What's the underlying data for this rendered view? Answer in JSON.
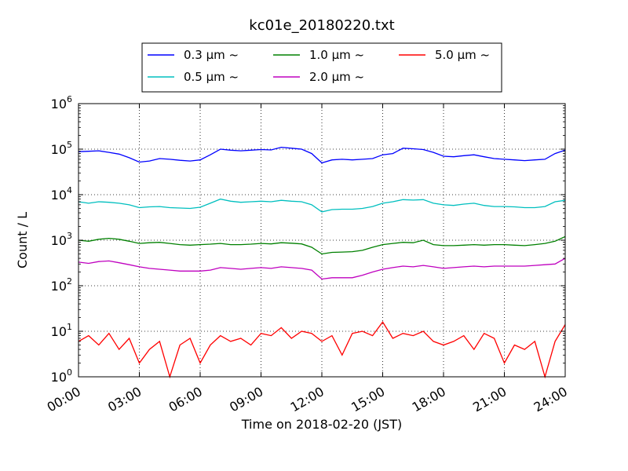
{
  "chart_data": {
    "type": "line",
    "title": "kc01e_20180220.txt",
    "xlabel": "Time on 2018-02-20 (JST)",
    "ylabel": "Count / L",
    "yscale": "log",
    "ylim": [
      1,
      1000000
    ],
    "xlim": [
      "00:00",
      "24:00"
    ],
    "grid": true,
    "legend_position": "top-center",
    "x_ticks": [
      "00:00",
      "03:00",
      "06:00",
      "09:00",
      "12:00",
      "15:00",
      "18:00",
      "21:00",
      "24:00"
    ],
    "y_ticks": [
      {
        "base": "10",
        "exp": "0"
      },
      {
        "base": "10",
        "exp": "1"
      },
      {
        "base": "10",
        "exp": "2"
      },
      {
        "base": "10",
        "exp": "3"
      },
      {
        "base": "10",
        "exp": "4"
      },
      {
        "base": "10",
        "exp": "5"
      },
      {
        "base": "10",
        "exp": "6"
      }
    ],
    "x_hours": [
      0.0,
      0.5,
      1.0,
      1.5,
      2.0,
      2.5,
      3.0,
      3.5,
      4.0,
      4.5,
      5.0,
      5.5,
      6.0,
      6.5,
      7.0,
      7.5,
      8.0,
      8.5,
      9.0,
      9.5,
      10.0,
      10.5,
      11.0,
      11.5,
      12.0,
      12.5,
      13.0,
      13.5,
      14.0,
      14.5,
      15.0,
      15.5,
      16.0,
      16.5,
      17.0,
      17.5,
      18.0,
      18.5,
      19.0,
      19.5,
      20.0,
      20.5,
      21.0,
      21.5,
      22.0,
      22.5,
      23.0,
      23.5,
      24.0
    ],
    "series": [
      {
        "name": "0.3 μm ~",
        "color": "#0000ff",
        "values": [
          88000,
          90000,
          92000,
          85000,
          78000,
          65000,
          52000,
          55000,
          62000,
          60000,
          57000,
          55000,
          58000,
          75000,
          100000,
          95000,
          92000,
          95000,
          98000,
          96000,
          110000,
          105000,
          100000,
          80000,
          50000,
          58000,
          60000,
          58000,
          60000,
          62000,
          75000,
          80000,
          105000,
          102000,
          98000,
          85000,
          70000,
          68000,
          72000,
          75000,
          68000,
          62000,
          60000,
          58000,
          56000,
          58000,
          60000,
          80000,
          95000
        ]
      },
      {
        "name": "0.5 μm ~",
        "color": "#00bfbf",
        "values": [
          7000,
          6500,
          7000,
          6800,
          6500,
          6000,
          5200,
          5400,
          5500,
          5200,
          5100,
          5000,
          5300,
          6500,
          8000,
          7200,
          6800,
          7000,
          7200,
          7000,
          7500,
          7200,
          7000,
          6000,
          4200,
          4700,
          4800,
          4800,
          5000,
          5500,
          6500,
          7000,
          7800,
          7600,
          7800,
          6500,
          6000,
          5800,
          6200,
          6500,
          5800,
          5500,
          5500,
          5400,
          5200,
          5200,
          5500,
          7000,
          7500
        ]
      },
      {
        "name": "1.0 μm ~",
        "color": "#008000",
        "values": [
          1000,
          950,
          1050,
          1100,
          1050,
          950,
          850,
          880,
          900,
          850,
          800,
          780,
          800,
          820,
          850,
          800,
          800,
          820,
          850,
          830,
          880,
          860,
          830,
          700,
          500,
          540,
          550,
          560,
          600,
          700,
          800,
          850,
          900,
          880,
          1000,
          800,
          760,
          760,
          780,
          800,
          780,
          800,
          800,
          780,
          760,
          800,
          850,
          950,
          1200
        ]
      },
      {
        "name": "2.0 μm ~",
        "color": "#bf00bf",
        "values": [
          330,
          310,
          340,
          350,
          320,
          290,
          260,
          240,
          230,
          220,
          210,
          210,
          210,
          220,
          250,
          240,
          230,
          240,
          250,
          240,
          260,
          250,
          240,
          220,
          140,
          150,
          150,
          150,
          170,
          200,
          230,
          250,
          270,
          260,
          280,
          260,
          240,
          250,
          260,
          270,
          260,
          270,
          270,
          270,
          270,
          280,
          290,
          300,
          400
        ]
      },
      {
        "name": "5.0 μm ~",
        "color": "#ff0000",
        "values": [
          6,
          8,
          5,
          9,
          4,
          7,
          2,
          4,
          6,
          1,
          5,
          7,
          2,
          5,
          8,
          6,
          7,
          5,
          9,
          8,
          12,
          7,
          10,
          9,
          6,
          8,
          3,
          9,
          10,
          8,
          16,
          7,
          9,
          8,
          10,
          6,
          5,
          6,
          8,
          4,
          9,
          7,
          2,
          5,
          4,
          6,
          1,
          6,
          14
        ]
      }
    ]
  }
}
